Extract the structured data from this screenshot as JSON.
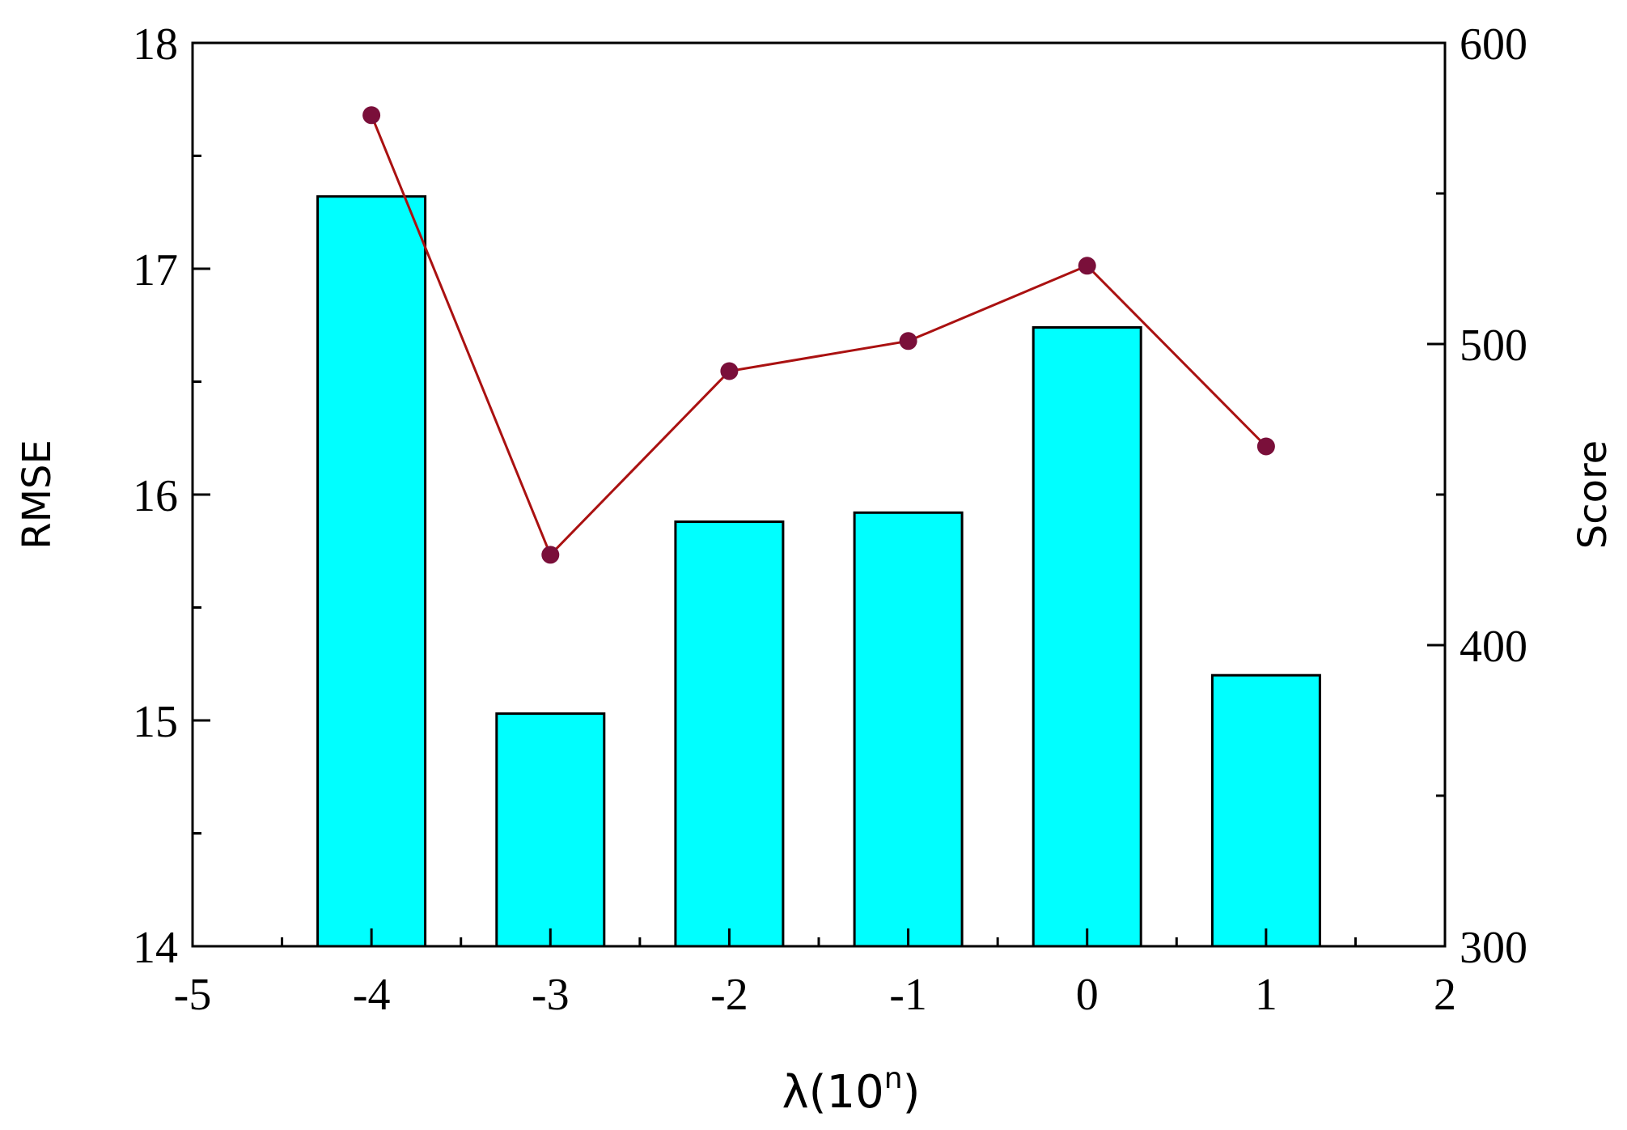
{
  "chart_data": {
    "type": "bar",
    "x": [
      -4,
      -3,
      -2,
      -1,
      0,
      1
    ],
    "xlim": [
      -5,
      2
    ],
    "xticks": [
      -5,
      -4,
      -3,
      -2,
      -1,
      0,
      1,
      2
    ],
    "xtick_labels": [
      "-5",
      "-4",
      "-3",
      "-2",
      "-1",
      "0",
      "1",
      "2"
    ],
    "xlabel_base": "λ(10",
    "xlabel_sup": "n",
    "xlabel_end": ")",
    "ylabel": "RMSE",
    "y2label": "Score",
    "ylim": [
      14,
      18
    ],
    "yticks": [
      14,
      15,
      16,
      17,
      18
    ],
    "ytick_labels": [
      "14",
      "15",
      "16",
      "17",
      "18"
    ],
    "y2lim": [
      300,
      600
    ],
    "y2ticks": [
      300,
      400,
      500,
      600
    ],
    "y2tick_labels": [
      "300",
      "400",
      "500",
      "600"
    ],
    "grid": false,
    "series": [
      {
        "type": "bar",
        "axis": "left",
        "values": [
          17.32,
          15.03,
          15.88,
          15.92,
          16.74,
          15.2
        ],
        "color": "#00ffff",
        "edge_color": "#000000"
      },
      {
        "type": "line",
        "axis": "right",
        "values": [
          576,
          430,
          491,
          501,
          526,
          466
        ],
        "color": "#aa1111",
        "marker_color": "#7a0f3a"
      }
    ]
  }
}
